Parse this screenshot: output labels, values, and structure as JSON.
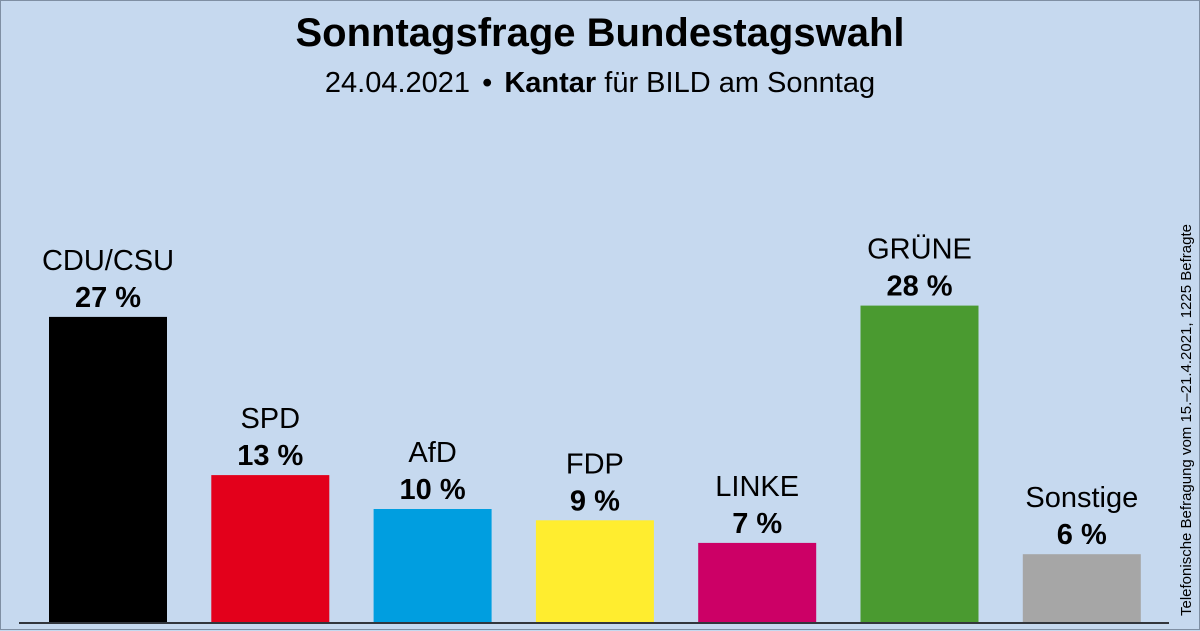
{
  "header": {
    "title": "Sonntagsfrage Bundestagswahl",
    "date": "24.04.2021",
    "separator": "•",
    "institute": "Kantar",
    "client": "für BILD am Sonntag"
  },
  "side_note": "Telefonische Befragung vom 15.–21.4.2021, 1225 Befragte",
  "chart_data": {
    "type": "bar",
    "title": "Sonntagsfrage Bundestagswahl",
    "categories": [
      "CDU/CSU",
      "SPD",
      "AfD",
      "FDP",
      "LINKE",
      "GRÜNE",
      "Sonstige"
    ],
    "values": [
      27,
      13,
      10,
      9,
      7,
      28,
      6
    ],
    "value_labels": [
      "27 %",
      "13 %",
      "10 %",
      "9 %",
      "7 %",
      "28 %",
      "6 %"
    ],
    "colors": [
      "#000000",
      "#e3001b",
      "#009ee0",
      "#ffed2f",
      "#cc0066",
      "#4a9a30",
      "#a6a6a6"
    ],
    "unit": "%",
    "ylim": [
      0,
      28
    ],
    "grid": false,
    "legend": "none"
  }
}
